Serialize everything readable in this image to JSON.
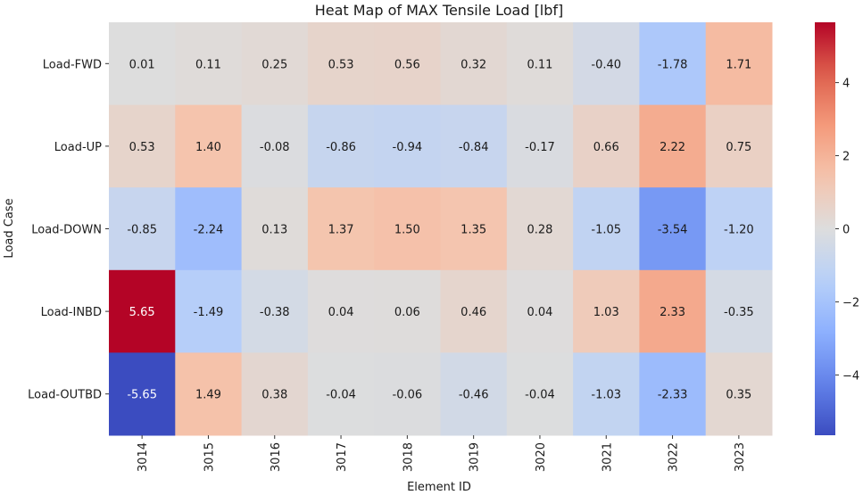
{
  "chart_data": {
    "type": "heatmap",
    "title": "Heat Map of MAX Tensile Load [lbf]",
    "xlabel": "Element ID",
    "ylabel": "Load Case",
    "x_categories": [
      "3014",
      "3015",
      "3016",
      "3017",
      "3018",
      "3019",
      "3020",
      "3021",
      "3022",
      "3023"
    ],
    "y_categories": [
      "Load-FWD",
      "Load-UP",
      "Load-DOWN",
      "Load-INBD",
      "Load-OUTBD"
    ],
    "values": [
      [
        0.01,
        0.11,
        0.25,
        0.53,
        0.56,
        0.32,
        0.11,
        -0.4,
        -1.78,
        1.71
      ],
      [
        0.53,
        1.4,
        -0.08,
        -0.86,
        -0.94,
        -0.84,
        -0.17,
        0.66,
        2.22,
        0.75
      ],
      [
        -0.85,
        -2.24,
        0.13,
        1.37,
        1.5,
        1.35,
        0.28,
        -1.05,
        -3.54,
        -1.2
      ],
      [
        5.65,
        -1.49,
        -0.38,
        0.04,
        0.06,
        0.46,
        0.04,
        1.03,
        2.33,
        -0.35
      ],
      [
        -5.65,
        1.49,
        0.38,
        -0.04,
        -0.06,
        -0.46,
        -0.04,
        -1.03,
        -2.33,
        0.35
      ]
    ],
    "value_format": "2 decimals",
    "colormap": "coolwarm",
    "vmin": -5.65,
    "vmax": 5.65,
    "colorbar": {
      "ticks": [
        -4,
        -2,
        0,
        2,
        4
      ],
      "tick_labels": [
        "−4",
        "−2",
        "0",
        "2",
        "4"
      ]
    },
    "grid": false
  }
}
